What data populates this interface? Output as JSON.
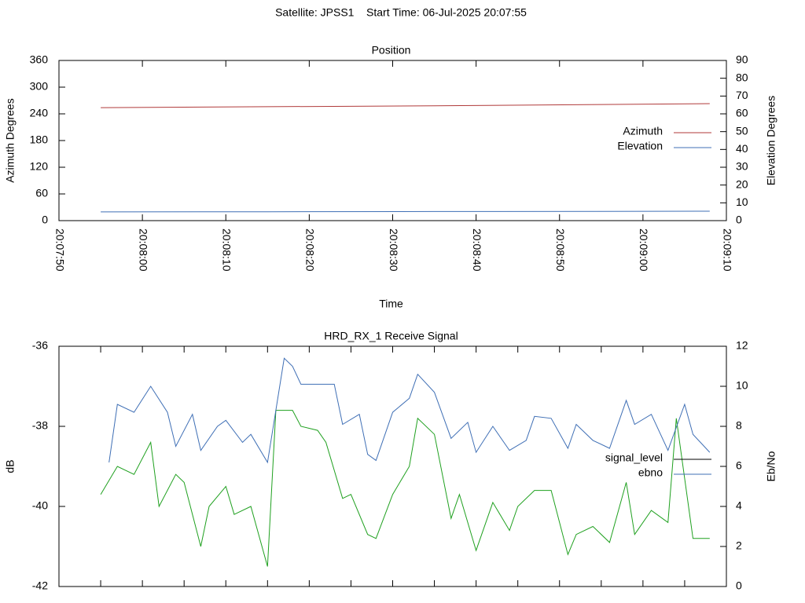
{
  "title": "Satellite: JPSS1    Start Time: 06-Jul-2025 20:07:55",
  "chart_data": [
    {
      "type": "line",
      "title": "Position",
      "xlabel": "Time",
      "ylabel": "Azimuth Degrees",
      "y2label": "Elevation Degrees",
      "xlim": [
        "20:07:50",
        "20:09:10"
      ],
      "xticks": [
        "20:07:50",
        "20:08:00",
        "20:08:10",
        "20:08:20",
        "20:08:30",
        "20:08:40",
        "20:08:50",
        "20:09:00",
        "20:09:10"
      ],
      "ylim": [
        0,
        360
      ],
      "yticks": [
        0,
        60,
        120,
        180,
        240,
        300,
        360
      ],
      "y2lim": [
        0,
        90
      ],
      "y2ticks": [
        0,
        10,
        20,
        30,
        40,
        50,
        60,
        70,
        80,
        90
      ],
      "series": [
        {
          "name": "Azimuth",
          "color": "#b03a3a",
          "x": [
            "20:07:55",
            "20:08:15",
            "20:08:35",
            "20:08:55",
            "20:09:08"
          ],
          "values": [
            254,
            256,
            258,
            261,
            263
          ]
        },
        {
          "name": "Elevation",
          "color": "#3f6fb5",
          "axis": "y2",
          "x": [
            "20:07:55",
            "20:08:15",
            "20:08:35",
            "20:08:55",
            "20:09:08"
          ],
          "values": [
            4.9,
            5.0,
            5.1,
            5.2,
            5.3
          ]
        }
      ]
    },
    {
      "type": "line",
      "title": "HRD_RX_1 Receive Signal",
      "ylabel": "dB",
      "y2label": "Eb/No",
      "xlim": [
        "20:07:50",
        "20:09:10"
      ],
      "xticks": [
        "20:07:55",
        "20:08:00",
        "20:08:05",
        "20:08:10",
        "20:08:15",
        "20:08:20",
        "20:08:25",
        "20:08:30",
        "20:08:35",
        "20:08:40",
        "20:08:45",
        "20:08:50",
        "20:08:55",
        "20:09:00",
        "20:09:05"
      ],
      "xticklabels": false,
      "ylim": [
        -42,
        -36
      ],
      "yticks": [
        -42,
        -40,
        -38,
        -36
      ],
      "y2lim": [
        0,
        12
      ],
      "y2ticks": [
        0,
        2,
        4,
        6,
        8,
        10,
        12
      ],
      "series": [
        {
          "name": "signal_level",
          "color": "#1fa01f",
          "legend_color": "#000000",
          "x": [
            "20:07:55",
            "20:07:57",
            "20:07:59",
            "20:08:01",
            "20:08:02",
            "20:08:04",
            "20:08:05",
            "20:08:07",
            "20:08:08",
            "20:08:10",
            "20:08:11",
            "20:08:13",
            "20:08:15",
            "20:08:16",
            "20:08:18",
            "20:08:19",
            "20:08:21",
            "20:08:22",
            "20:08:24",
            "20:08:25",
            "20:08:27",
            "20:08:28",
            "20:08:30",
            "20:08:32",
            "20:08:33",
            "20:08:35",
            "20:08:37",
            "20:08:38",
            "20:08:40",
            "20:08:42",
            "20:08:44",
            "20:08:45",
            "20:08:47",
            "20:08:49",
            "20:08:51",
            "20:08:52",
            "20:08:54",
            "20:08:56",
            "20:08:58",
            "20:08:59",
            "20:09:01",
            "20:09:03",
            "20:09:04",
            "20:09:06",
            "20:09:08"
          ],
          "values": [
            -39.7,
            -39.0,
            -39.2,
            -38.4,
            -40.0,
            -39.2,
            -39.4,
            -41.0,
            -40.0,
            -39.5,
            -40.2,
            -40.0,
            -41.5,
            -37.6,
            -37.6,
            -38.0,
            -38.1,
            -38.4,
            -39.8,
            -39.7,
            -40.7,
            -40.8,
            -39.7,
            -39.0,
            -37.8,
            -38.2,
            -40.3,
            -39.7,
            -41.1,
            -39.9,
            -40.6,
            -40.0,
            -39.6,
            -39.6,
            -41.2,
            -40.7,
            -40.5,
            -40.9,
            -39.4,
            -40.7,
            -40.1,
            -40.4,
            -37.8,
            -40.8,
            -40.8
          ]
        },
        {
          "name": "ebno",
          "color": "#3f6fb5",
          "axis": "y2",
          "x": [
            "20:07:56",
            "20:07:57",
            "20:07:59",
            "20:08:01",
            "20:08:03",
            "20:08:04",
            "20:08:06",
            "20:08:07",
            "20:08:09",
            "20:08:10",
            "20:08:12",
            "20:08:13",
            "20:08:15",
            "20:08:17",
            "20:08:18",
            "20:08:19",
            "20:08:23",
            "20:08:24",
            "20:08:26",
            "20:08:27",
            "20:08:28",
            "20:08:30",
            "20:08:32",
            "20:08:33",
            "20:08:35",
            "20:08:37",
            "20:08:39",
            "20:08:40",
            "20:08:42",
            "20:08:44",
            "20:08:46",
            "20:08:47",
            "20:08:49",
            "20:08:51",
            "20:08:52",
            "20:08:54",
            "20:08:56",
            "20:08:58",
            "20:08:59",
            "20:09:01",
            "20:09:03",
            "20:09:05",
            "20:09:06",
            "20:09:08"
          ],
          "values": [
            6.2,
            9.1,
            8.7,
            10.0,
            8.7,
            7.0,
            8.6,
            6.8,
            8.0,
            8.3,
            7.2,
            7.6,
            6.2,
            11.4,
            11.0,
            10.1,
            10.1,
            8.1,
            8.6,
            6.6,
            6.3,
            8.7,
            9.4,
            10.6,
            9.7,
            7.4,
            8.2,
            6.7,
            8.0,
            6.8,
            7.3,
            8.5,
            8.4,
            6.9,
            8.1,
            7.3,
            6.9,
            9.3,
            8.1,
            8.6,
            6.8,
            9.1,
            7.6,
            6.7
          ]
        }
      ]
    }
  ]
}
